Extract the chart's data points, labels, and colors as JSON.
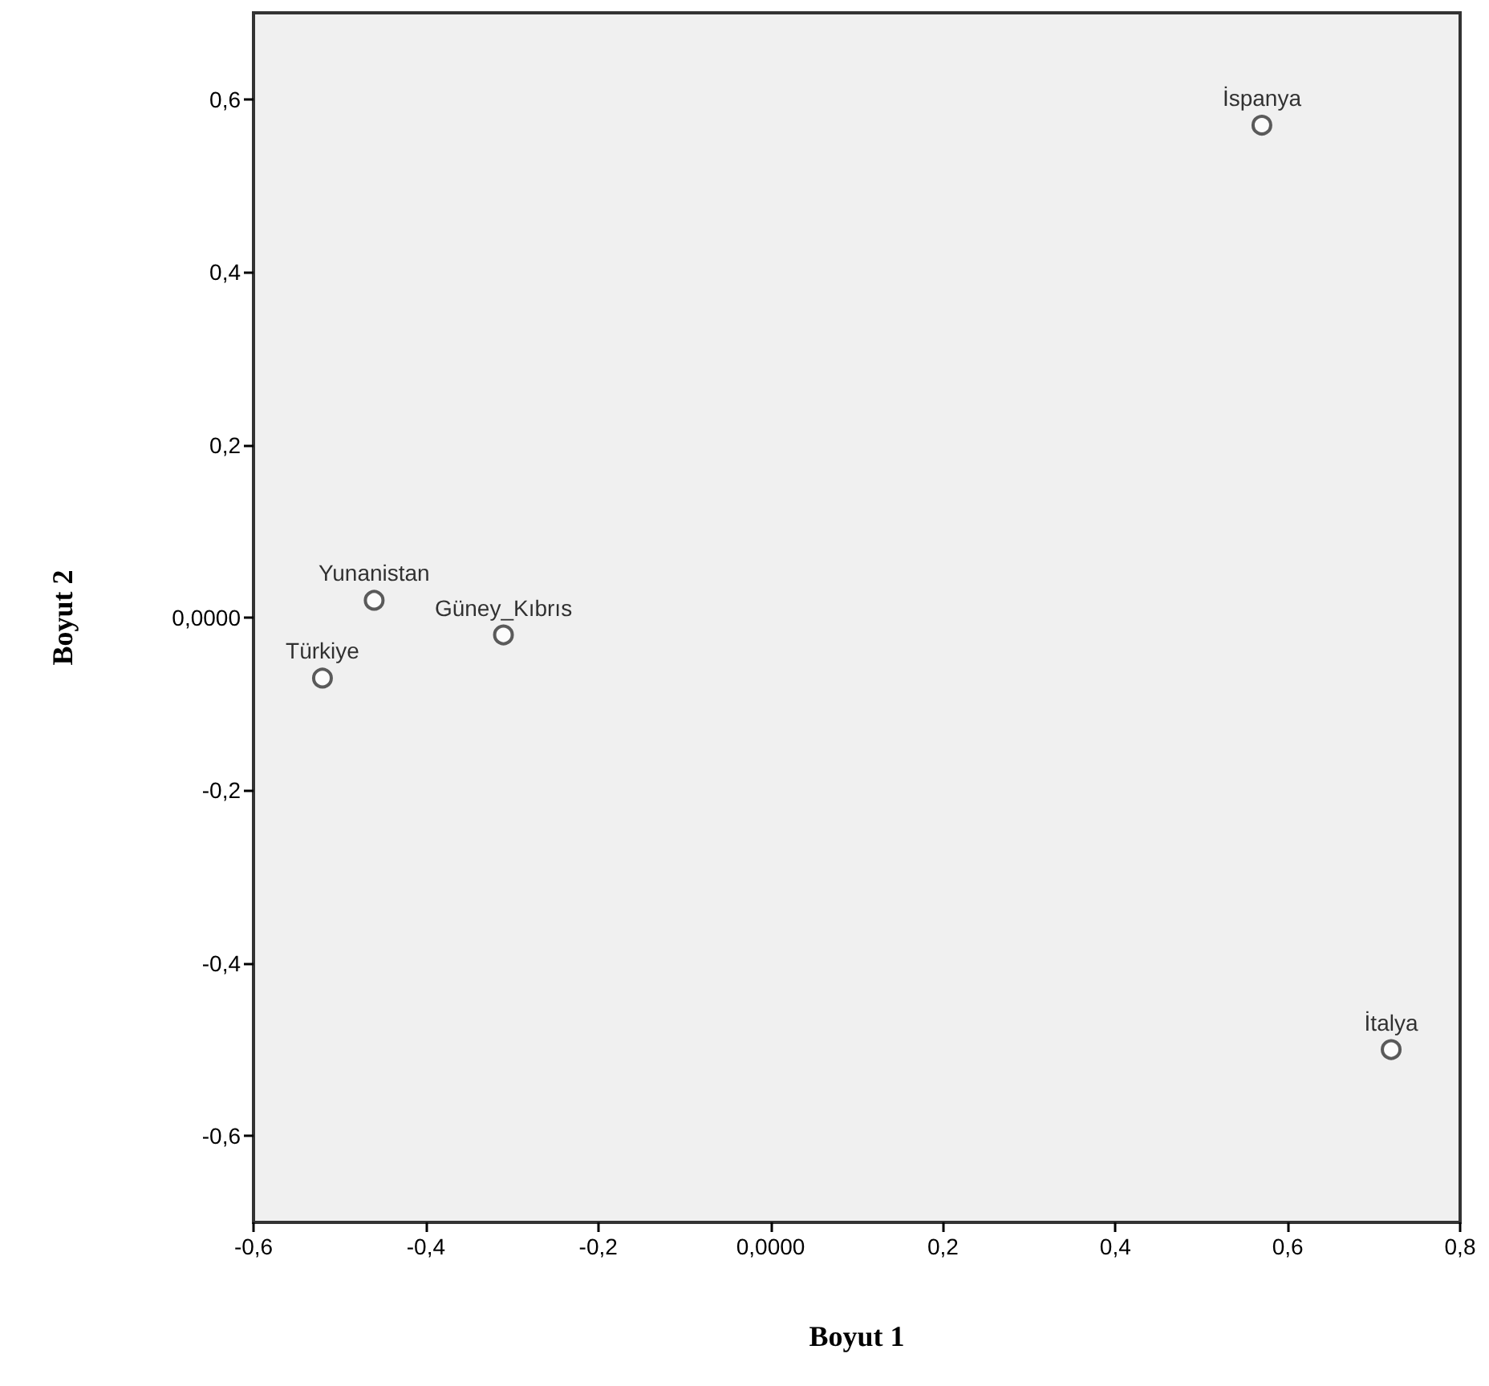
{
  "chart_data": {
    "type": "scatter",
    "xlabel": "Boyut 1",
    "ylabel": "Boyut 2",
    "x": [
      0.57,
      0.72,
      -0.46,
      -0.52,
      -0.31
    ],
    "values": [
      0.57,
      -0.5,
      0.02,
      -0.07,
      -0.02
    ],
    "color": "#333333",
    "marker": "circle",
    "xlim": [
      -0.6,
      0.8
    ],
    "ylim": [
      -0.7,
      0.7
    ],
    "xticks": [
      {
        "value": -0.6,
        "label": "-0,6"
      },
      {
        "value": -0.4,
        "label": "-0,4"
      },
      {
        "value": -0.2,
        "label": "-0,2"
      },
      {
        "value": 0,
        "label": "0,0000"
      },
      {
        "value": 0.2,
        "label": "0,2"
      },
      {
        "value": 0.4,
        "label": "0,4"
      },
      {
        "value": 0.6,
        "label": "0,6"
      },
      {
        "value": 0.8,
        "label": "0,8"
      }
    ],
    "yticks": [
      {
        "value": -0.6,
        "label": "-0,6"
      },
      {
        "value": -0.4,
        "label": "-0,4"
      },
      {
        "value": -0.2,
        "label": "-0,2"
      },
      {
        "value": 0,
        "label": "0,0000"
      },
      {
        "value": 0.2,
        "label": "0,2"
      },
      {
        "value": 0.4,
        "label": "0,4"
      },
      {
        "value": 0.6,
        "label": "0,6"
      }
    ],
    "annotations": [
      {
        "text": "İspanya",
        "x": 0.57,
        "y": 0.57
      },
      {
        "text": "İtalya",
        "x": 0.72,
        "y": -0.5
      },
      {
        "text": "Yunanistan",
        "x": -0.46,
        "y": 0.02
      },
      {
        "text": "Türkiye",
        "x": -0.52,
        "y": -0.07
      },
      {
        "text": "Güney_Kıbrıs",
        "x": -0.31,
        "y": -0.02
      }
    ]
  }
}
